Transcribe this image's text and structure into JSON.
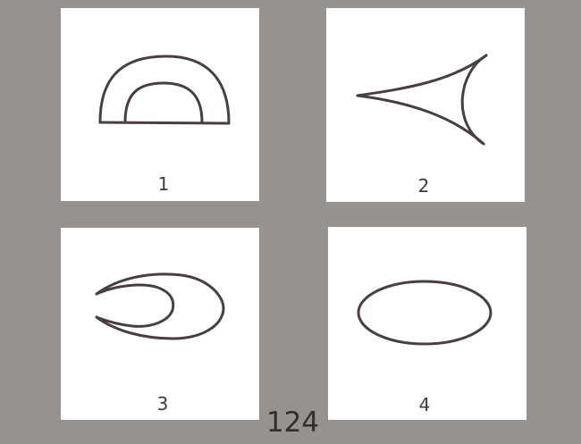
{
  "page_number": "124",
  "cards": [
    {
      "label": "1",
      "shape": "double-arch-shape"
    },
    {
      "label": "2",
      "shape": "curved-arrowhead-shape"
    },
    {
      "label": "3",
      "shape": "crescent-shape"
    },
    {
      "label": "4",
      "shape": "oval-shape"
    }
  ],
  "colors": {
    "background": "#959290",
    "card": "#ffffff",
    "stroke": "#4a3f40"
  }
}
